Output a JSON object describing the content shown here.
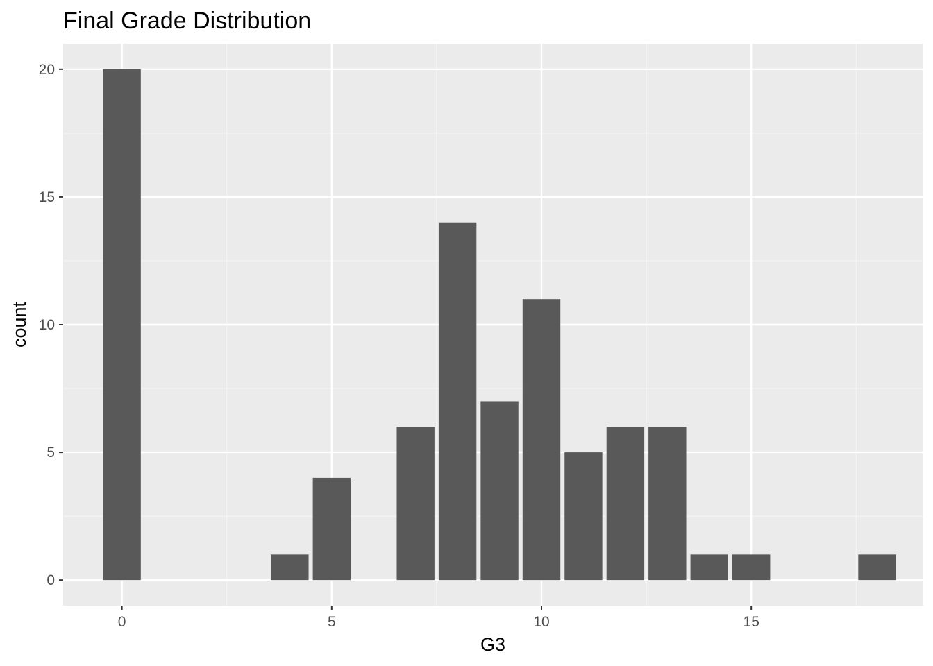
{
  "chart_data": {
    "type": "bar",
    "title": "Final Grade Distribution",
    "xlabel": "G3",
    "ylabel": "count",
    "x": [
      0,
      4,
      5,
      7,
      8,
      9,
      10,
      11,
      12,
      13,
      14,
      15,
      18
    ],
    "values": [
      20,
      1,
      4,
      6,
      14,
      7,
      11,
      5,
      6,
      6,
      1,
      1,
      1
    ],
    "xlim": [
      -1.4,
      19.1
    ],
    "ylim": [
      -1,
      21
    ],
    "x_ticks": [
      0,
      5,
      10,
      15
    ],
    "x_tick_labels": [
      "0",
      "5",
      "10",
      "15"
    ],
    "y_ticks": [
      0,
      5,
      10,
      15,
      20
    ],
    "y_tick_labels": [
      "0",
      "5",
      "10",
      "15",
      "20"
    ],
    "bar_width": 0.9,
    "grid": true,
    "legend": "none",
    "colors": {
      "bar": "#595959",
      "panel_background": "#ebebeb",
      "grid_major": "#ffffff",
      "grid_minor": "#f4f4f4",
      "tick_text": "#4d4d4d",
      "tick_mark": "#333333"
    }
  }
}
